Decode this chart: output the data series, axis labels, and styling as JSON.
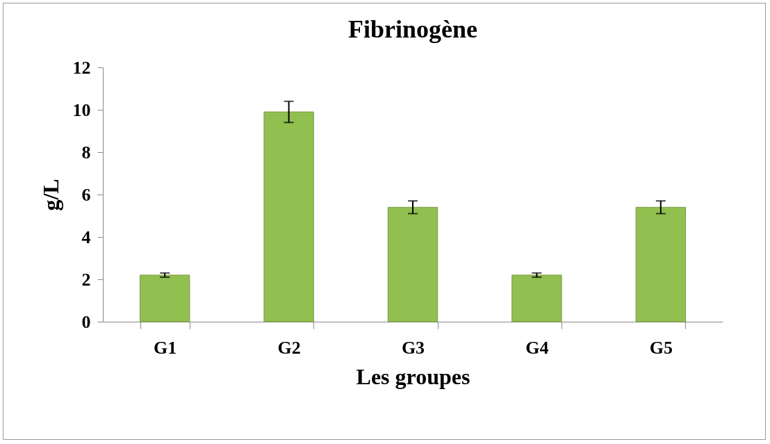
{
  "chart_data": {
    "type": "bar",
    "title": "Fibrinogène",
    "xlabel": "Les groupes",
    "ylabel": "g/L",
    "categories": [
      "G1",
      "G2",
      "G3",
      "G4",
      "G5"
    ],
    "values": [
      2.2,
      9.9,
      5.4,
      2.2,
      5.4
    ],
    "errors": [
      0.1,
      0.5,
      0.3,
      0.1,
      0.3
    ],
    "color": "#92c050",
    "ylim": [
      0,
      12
    ],
    "yticks": [
      0,
      2,
      4,
      6,
      8,
      10,
      12
    ],
    "grid": false
  }
}
